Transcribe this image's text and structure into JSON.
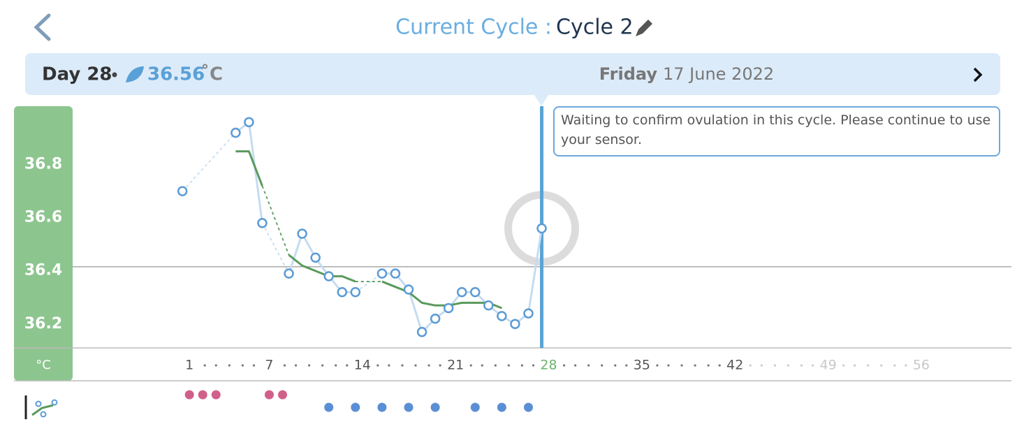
{
  "header": {
    "title_label": "Current Cycle :",
    "cycle_name": "Cycle 2"
  },
  "day_bar": {
    "day": "Day 28",
    "temperature": "36.56",
    "unit": "˚C",
    "weekday": "Friday",
    "date": "17 June 2022"
  },
  "message": "Waiting to confirm ovulation in this cycle. Please continue to use your sensor.",
  "chart": {
    "y_unit": "°C",
    "ylim": [
      36.11,
      37.02
    ],
    "yticks": [
      36.2,
      36.4,
      36.6,
      36.8
    ],
    "reference_line": 36.4,
    "xlim": [
      -7.25,
      63.3
    ],
    "xticks": [
      1,
      7,
      14,
      21,
      28,
      35,
      42,
      49,
      56
    ],
    "selected_day": 28,
    "days": [
      1,
      5,
      6,
      7,
      9,
      10,
      11,
      12,
      13,
      14,
      16,
      17,
      18,
      19,
      20,
      21,
      22,
      23,
      24,
      25,
      26,
      27,
      28
    ],
    "temps": [
      36.7,
      36.92,
      36.96,
      36.58,
      36.39,
      36.54,
      36.45,
      36.38,
      36.32,
      36.32,
      36.39,
      36.39,
      36.33,
      36.17,
      36.22,
      36.26,
      36.32,
      36.32,
      36.27,
      36.23,
      36.2,
      36.24,
      36.56
    ],
    "trend_days": [
      5,
      6,
      7,
      9,
      10,
      11,
      12,
      13,
      14,
      16,
      17,
      18,
      19,
      20,
      21,
      22,
      23,
      24,
      25
    ],
    "trend": [
      36.85,
      36.85,
      36.72,
      36.46,
      36.42,
      36.4,
      36.38,
      36.38,
      36.36,
      36.36,
      36.34,
      36.32,
      36.28,
      36.27,
      36.27,
      36.28,
      36.28,
      36.28,
      36.26
    ],
    "period_days": [
      1,
      2,
      3,
      7,
      8
    ],
    "marked_days": [
      12,
      14,
      16,
      18,
      20,
      23,
      25,
      27
    ]
  }
}
